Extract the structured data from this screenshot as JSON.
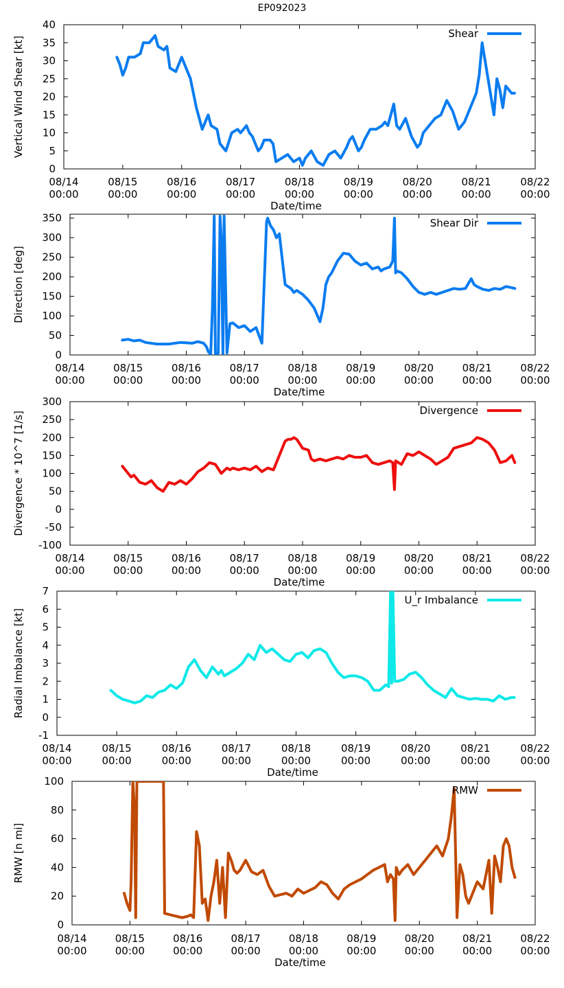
{
  "title": "EP092023",
  "x_ticks": [
    [
      "08/14",
      "00:00"
    ],
    [
      "08/15",
      "00:00"
    ],
    [
      "08/16",
      "00:00"
    ],
    [
      "08/17",
      "00:00"
    ],
    [
      "08/18",
      "00:00"
    ],
    [
      "08/19",
      "00:00"
    ],
    [
      "08/20",
      "00:00"
    ],
    [
      "08/21",
      "00:00"
    ],
    [
      "08/22",
      "00:00"
    ]
  ],
  "chart_data": [
    {
      "type": "line",
      "title": "EP092023",
      "xlabel": "Date/time",
      "ylabel": "Vertical Wind Shear [kt]",
      "xlim": [
        0,
        8
      ],
      "ylim": [
        0,
        40
      ],
      "yticks": [
        0,
        5,
        10,
        15,
        20,
        25,
        30,
        35,
        40
      ],
      "ytick_labels": [
        "0",
        "5",
        "10",
        "15",
        "20",
        "25",
        "30",
        "35",
        "40"
      ],
      "series": [
        {
          "name": "Shear",
          "color": "#0a7cf0",
          "x": [
            0.9,
            0.95,
            1.0,
            1.05,
            1.1,
            1.2,
            1.3,
            1.35,
            1.45,
            1.55,
            1.6,
            1.7,
            1.75,
            1.8,
            1.9,
            2.0,
            2.05,
            2.15,
            2.25,
            2.35,
            2.45,
            2.5,
            2.6,
            2.65,
            2.75,
            2.85,
            2.95,
            3.0,
            3.1,
            3.15,
            3.2,
            3.3,
            3.35,
            3.4,
            3.5,
            3.55,
            3.6,
            3.7,
            3.8,
            3.9,
            4.0,
            4.05,
            4.1,
            4.2,
            4.3,
            4.4,
            4.5,
            4.6,
            4.7,
            4.8,
            4.85,
            4.9,
            4.95,
            5.0,
            5.05,
            5.1,
            5.2,
            5.3,
            5.4,
            5.45,
            5.5,
            5.6,
            5.65,
            5.7,
            5.8,
            5.9,
            6.0,
            6.05,
            6.1,
            6.2,
            6.3,
            6.4,
            6.45,
            6.5,
            6.6,
            6.7,
            6.75,
            6.8,
            6.9,
            7.0,
            7.05,
            7.1,
            7.15,
            7.2,
            7.25,
            7.3,
            7.35,
            7.4,
            7.45,
            7.5,
            7.55,
            7.6,
            7.65
          ],
          "y": [
            31,
            29,
            26,
            28,
            31,
            31,
            32,
            35,
            35,
            37,
            34,
            33,
            34,
            28,
            27,
            31,
            29,
            25,
            17,
            11,
            15,
            12,
            11,
            7,
            5,
            10,
            11,
            10,
            12,
            10,
            9,
            5,
            6,
            8,
            8,
            7,
            2,
            3,
            4,
            2,
            3,
            1,
            3,
            5,
            2,
            1,
            4,
            5,
            3,
            6,
            8,
            9,
            7,
            5,
            6,
            8,
            11,
            11,
            12,
            13,
            12,
            18,
            12,
            11,
            14,
            9,
            6,
            7,
            10,
            12,
            14,
            15,
            17,
            19,
            16,
            11,
            12,
            13,
            17,
            21,
            26,
            35,
            30,
            25,
            20,
            15,
            25,
            22,
            17,
            23,
            22,
            21,
            21
          ]
        }
      ]
    },
    {
      "type": "line",
      "xlabel": "Date/time",
      "ylabel": "Direction [deg]",
      "xlim": [
        0,
        8
      ],
      "ylim": [
        0,
        360
      ],
      "yticks": [
        0,
        50,
        100,
        150,
        200,
        250,
        300,
        350
      ],
      "ytick_labels": [
        "0",
        "50",
        "100",
        "150",
        "200",
        "250",
        "300",
        "350"
      ],
      "series": [
        {
          "name": "Shear Dir",
          "color": "#0a7cf0",
          "x": [
            0.9,
            1.0,
            1.1,
            1.2,
            1.3,
            1.5,
            1.7,
            1.9,
            2.1,
            2.2,
            2.3,
            2.35,
            2.38,
            2.42,
            2.45,
            2.48,
            2.5,
            2.55,
            2.58,
            2.6,
            2.63,
            2.65,
            2.7,
            2.75,
            2.8,
            2.9,
            3.0,
            3.1,
            3.2,
            3.3,
            3.38,
            3.4,
            3.45,
            3.5,
            3.55,
            3.6,
            3.7,
            3.8,
            3.85,
            3.9,
            4.0,
            4.1,
            4.2,
            4.3,
            4.35,
            4.4,
            4.45,
            4.5,
            4.6,
            4.7,
            4.8,
            4.9,
            5.0,
            5.1,
            5.2,
            5.3,
            5.35,
            5.4,
            5.5,
            5.55,
            5.58,
            5.6,
            5.62,
            5.7,
            5.8,
            5.9,
            6.0,
            6.1,
            6.2,
            6.3,
            6.4,
            6.5,
            6.6,
            6.7,
            6.8,
            6.9,
            6.95,
            7.0,
            7.1,
            7.2,
            7.3,
            7.4,
            7.5,
            7.6,
            7.65
          ],
          "y": [
            38,
            40,
            36,
            38,
            32,
            28,
            28,
            32,
            30,
            34,
            30,
            20,
            8,
            2,
            120,
            355,
            2,
            5,
            355,
            300,
            2,
            355,
            5,
            80,
            82,
            70,
            75,
            60,
            70,
            30,
            340,
            350,
            330,
            320,
            300,
            310,
            180,
            170,
            160,
            165,
            155,
            140,
            120,
            85,
            120,
            180,
            200,
            210,
            240,
            260,
            258,
            240,
            230,
            235,
            220,
            225,
            215,
            220,
            225,
            240,
            350,
            210,
            215,
            210,
            195,
            175,
            160,
            155,
            160,
            155,
            160,
            165,
            170,
            168,
            170,
            195,
            180,
            175,
            168,
            165,
            170,
            168,
            175,
            172,
            170
          ]
        }
      ]
    },
    {
      "type": "line",
      "xlabel": "Date/time",
      "ylabel": "Divergence * 10^7 [1/s]",
      "xlim": [
        0,
        8
      ],
      "ylim": [
        -100,
        300
      ],
      "yticks": [
        -100,
        -50,
        0,
        50,
        100,
        150,
        200,
        250,
        300
      ],
      "ytick_labels": [
        "-100",
        "-50",
        "0",
        "50",
        "100",
        "150",
        "200",
        "250",
        "300"
      ],
      "series": [
        {
          "name": "Divergence",
          "color": "#ee0e0e",
          "x": [
            0.9,
            1.0,
            1.05,
            1.1,
            1.2,
            1.3,
            1.4,
            1.5,
            1.55,
            1.6,
            1.7,
            1.8,
            1.9,
            2.0,
            2.1,
            2.2,
            2.3,
            2.4,
            2.5,
            2.6,
            2.7,
            2.75,
            2.8,
            2.9,
            3.0,
            3.1,
            3.2,
            3.3,
            3.4,
            3.5,
            3.6,
            3.7,
            3.75,
            3.8,
            3.85,
            3.9,
            4.0,
            4.1,
            4.15,
            4.2,
            4.3,
            4.4,
            4.5,
            4.6,
            4.7,
            4.8,
            4.9,
            5.0,
            5.1,
            5.2,
            5.3,
            5.4,
            5.5,
            5.55,
            5.58,
            5.6,
            5.65,
            5.7,
            5.8,
            5.9,
            6.0,
            6.1,
            6.2,
            6.3,
            6.4,
            6.5,
            6.6,
            6.7,
            6.8,
            6.9,
            7.0,
            7.1,
            7.2,
            7.3,
            7.4,
            7.5,
            7.6,
            7.65
          ],
          "y": [
            120,
            100,
            90,
            95,
            75,
            70,
            80,
            60,
            55,
            50,
            75,
            70,
            80,
            70,
            85,
            105,
            115,
            130,
            125,
            100,
            115,
            110,
            115,
            110,
            115,
            110,
            120,
            105,
            115,
            110,
            150,
            190,
            195,
            195,
            200,
            195,
            170,
            165,
            140,
            135,
            140,
            135,
            140,
            145,
            140,
            150,
            145,
            145,
            150,
            130,
            125,
            130,
            135,
            130,
            55,
            135,
            130,
            125,
            155,
            150,
            160,
            150,
            140,
            125,
            135,
            145,
            170,
            175,
            180,
            185,
            200,
            195,
            185,
            165,
            130,
            135,
            150,
            130
          ]
        }
      ]
    },
    {
      "type": "line",
      "xlabel": "Date/time",
      "ylabel": "Radial Imbalance [kt]",
      "xlim": [
        0,
        8
      ],
      "ylim": [
        -1,
        7
      ],
      "yticks": [
        -1,
        0,
        1,
        2,
        3,
        4,
        5,
        6,
        7
      ],
      "ytick_labels": [
        "-1",
        "0",
        "1",
        "2",
        "3",
        "4",
        "5",
        "6",
        "7"
      ],
      "series": [
        {
          "name": "U_r Imbalance",
          "color": "#0fe8e8",
          "x": [
            0.9,
            1.0,
            1.1,
            1.2,
            1.3,
            1.4,
            1.5,
            1.6,
            1.7,
            1.8,
            1.9,
            2.0,
            2.1,
            2.2,
            2.3,
            2.4,
            2.5,
            2.6,
            2.7,
            2.75,
            2.8,
            2.9,
            3.0,
            3.1,
            3.2,
            3.3,
            3.4,
            3.5,
            3.6,
            3.7,
            3.8,
            3.9,
            4.0,
            4.1,
            4.2,
            4.3,
            4.4,
            4.5,
            4.6,
            4.7,
            4.8,
            4.9,
            5.0,
            5.1,
            5.2,
            5.3,
            5.4,
            5.5,
            5.55,
            5.58,
            5.6,
            5.62,
            5.65,
            5.7,
            5.8,
            5.9,
            6.0,
            6.1,
            6.2,
            6.3,
            6.4,
            6.5,
            6.6,
            6.7,
            6.8,
            6.9,
            7.0,
            7.1,
            7.2,
            7.3,
            7.4,
            7.5,
            7.6,
            7.65
          ],
          "y": [
            1.5,
            1.2,
            1.0,
            0.9,
            0.8,
            0.9,
            1.2,
            1.1,
            1.4,
            1.5,
            1.8,
            1.6,
            1.9,
            2.8,
            3.2,
            2.6,
            2.2,
            2.8,
            2.4,
            2.6,
            2.3,
            2.5,
            2.7,
            3.0,
            3.5,
            3.2,
            4.0,
            3.6,
            3.8,
            3.5,
            3.2,
            3.1,
            3.5,
            3.6,
            3.3,
            3.7,
            3.8,
            3.6,
            3.0,
            2.5,
            2.2,
            2.3,
            2.3,
            2.2,
            2.0,
            1.5,
            1.5,
            1.8,
            1.7,
            7.0,
            1.9,
            7.0,
            2.0,
            2.0,
            2.1,
            2.4,
            2.5,
            2.2,
            1.8,
            1.5,
            1.3,
            1.1,
            1.6,
            1.2,
            1.1,
            1.0,
            1.05,
            1.0,
            1.0,
            0.9,
            1.2,
            1.0,
            1.1,
            1.1
          ]
        }
      ]
    },
    {
      "type": "line",
      "xlabel": "Date/time",
      "ylabel": "RMW [n mi]",
      "xlim": [
        0,
        8
      ],
      "ylim": [
        0,
        100
      ],
      "yticks": [
        0,
        20,
        40,
        60,
        80,
        100
      ],
      "ytick_labels": [
        "0",
        "20",
        "40",
        "60",
        "80",
        "100"
      ],
      "series": [
        {
          "name": "RMW",
          "color": "#c04a00",
          "x": [
            0.9,
            0.95,
            1.0,
            1.02,
            1.05,
            1.08,
            1.1,
            1.12,
            1.15,
            1.2,
            1.25,
            1.3,
            1.35,
            1.4,
            1.45,
            1.5,
            1.55,
            1.58,
            1.6,
            1.7,
            1.8,
            1.9,
            2.0,
            2.05,
            2.1,
            2.15,
            2.2,
            2.25,
            2.3,
            2.35,
            2.4,
            2.45,
            2.5,
            2.55,
            2.6,
            2.65,
            2.7,
            2.75,
            2.8,
            2.85,
            2.9,
            3.0,
            3.1,
            3.2,
            3.3,
            3.4,
            3.5,
            3.6,
            3.7,
            3.8,
            3.9,
            4.0,
            4.1,
            4.2,
            4.3,
            4.4,
            4.5,
            4.6,
            4.7,
            4.8,
            4.9,
            5.0,
            5.1,
            5.2,
            5.3,
            5.4,
            5.45,
            5.5,
            5.55,
            5.58,
            5.6,
            5.65,
            5.7,
            5.8,
            5.9,
            6.0,
            6.1,
            6.2,
            6.3,
            6.4,
            6.5,
            6.55,
            6.6,
            6.65,
            6.7,
            6.75,
            6.8,
            6.85,
            6.9,
            7.0,
            7.1,
            7.2,
            7.25,
            7.3,
            7.35,
            7.4,
            7.45,
            7.5,
            7.55,
            7.6,
            7.65
          ],
          "y": [
            22,
            15,
            10,
            30,
            100,
            80,
            5,
            100,
            100,
            100,
            100,
            100,
            100,
            100,
            100,
            100,
            100,
            100,
            8,
            7,
            6,
            5,
            6,
            7,
            5,
            65,
            55,
            15,
            18,
            3,
            20,
            30,
            45,
            15,
            40,
            5,
            50,
            45,
            38,
            36,
            38,
            45,
            37,
            35,
            38,
            27,
            20,
            21,
            22,
            20,
            25,
            22,
            24,
            26,
            30,
            28,
            22,
            18,
            25,
            28,
            30,
            32,
            35,
            38,
            40,
            42,
            30,
            35,
            32,
            3,
            40,
            35,
            38,
            42,
            35,
            40,
            45,
            50,
            55,
            48,
            60,
            75,
            95,
            5,
            42,
            35,
            20,
            15,
            20,
            30,
            25,
            45,
            8,
            48,
            40,
            30,
            55,
            60,
            55,
            40,
            33
          ]
        }
      ]
    }
  ]
}
